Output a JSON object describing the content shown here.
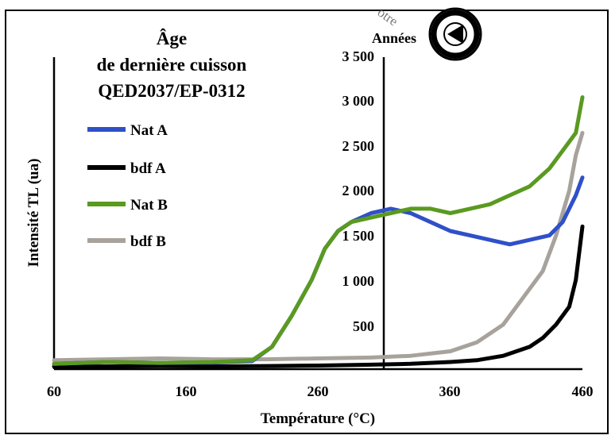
{
  "watermark": "otre",
  "chart_data": {
    "type": "line",
    "title_lines": [
      "Âge",
      "de dernière cuisson",
      "QED2037/EP-0312"
    ],
    "xlabel": "Température (°C)",
    "ylabel": "Intensité TL (ua)",
    "y2label": "Années",
    "xlim": [
      60,
      460
    ],
    "ylim": [
      0,
      3500
    ],
    "x_ticks": [
      "60",
      "160",
      "260",
      "360",
      "460"
    ],
    "y2_ticks": [
      "500",
      "1 000",
      "1 500",
      "2 000",
      "2 500",
      "3 000",
      "3 500"
    ],
    "legend_position": "upper-left",
    "series": [
      {
        "name": "Nat A",
        "color": "#3050c8",
        "x": [
          60,
          100,
          140,
          180,
          210,
          225,
          240,
          255,
          265,
          275,
          285,
          300,
          315,
          330,
          345,
          360,
          375,
          390,
          405,
          420,
          435,
          445,
          455,
          460
        ],
        "y": [
          60,
          80,
          70,
          75,
          90,
          250,
          600,
          1000,
          1350,
          1550,
          1650,
          1750,
          1800,
          1750,
          1650,
          1550,
          1500,
          1450,
          1400,
          1450,
          1500,
          1650,
          1950,
          2150
        ]
      },
      {
        "name": "bdf A",
        "color": "#000000",
        "x": [
          60,
          100,
          140,
          180,
          220,
          260,
          300,
          330,
          360,
          380,
          400,
          420,
          430,
          440,
          450,
          455,
          460
        ],
        "y": [
          30,
          30,
          35,
          30,
          35,
          40,
          50,
          60,
          80,
          100,
          150,
          250,
          350,
          500,
          700,
          1000,
          1600
        ]
      },
      {
        "name": "Nat B",
        "color": "#5a9a20",
        "x": [
          60,
          100,
          140,
          180,
          210,
          225,
          240,
          255,
          265,
          275,
          285,
          300,
          315,
          330,
          345,
          360,
          375,
          390,
          405,
          420,
          435,
          445,
          455,
          460
        ],
        "y": [
          60,
          80,
          70,
          80,
          100,
          250,
          600,
          1000,
          1350,
          1550,
          1650,
          1700,
          1750,
          1800,
          1800,
          1750,
          1800,
          1850,
          1950,
          2050,
          2250,
          2450,
          2650,
          3050
        ]
      },
      {
        "name": "bdf B",
        "color": "#a8a29c",
        "x": [
          60,
          100,
          140,
          180,
          220,
          260,
          300,
          330,
          360,
          380,
          400,
          415,
          430,
          440,
          450,
          455,
          460
        ],
        "y": [
          100,
          110,
          120,
          110,
          110,
          120,
          130,
          150,
          200,
          300,
          500,
          800,
          1100,
          1500,
          2000,
          2400,
          2650
        ]
      }
    ]
  }
}
